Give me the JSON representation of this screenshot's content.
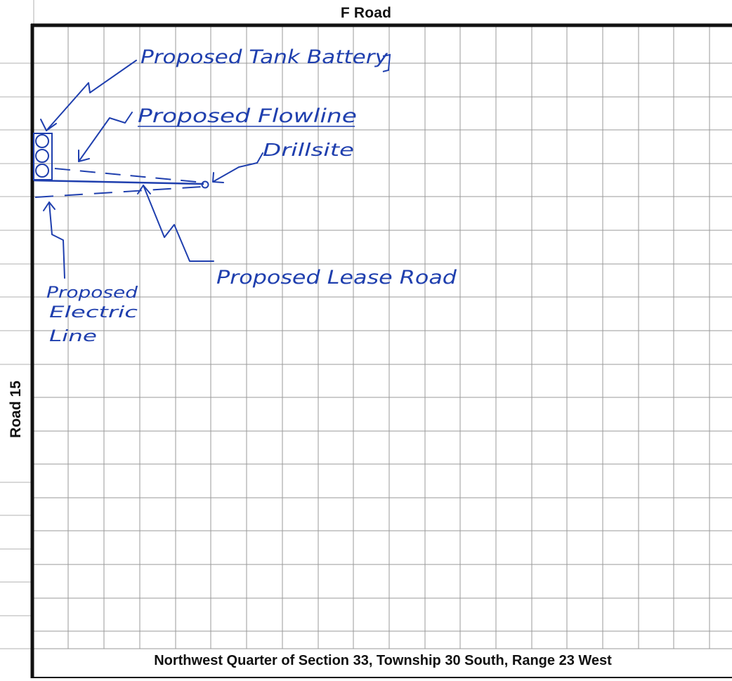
{
  "roads": {
    "top": "F Road",
    "left": "Road 15"
  },
  "labels": {
    "tank_battery": "Proposed Tank Battery",
    "flowline": "Proposed Flowline",
    "drillsite": "Drillsite",
    "lease_road": "Proposed Lease Road",
    "electric_line_1": "Proposed",
    "electric_line_2": "Electric",
    "electric_line_3": "Line"
  },
  "caption": "Northwest Quarter of Section 33, Township 30 South, Range 23 West",
  "colors": {
    "ink": "#1f3fae",
    "grid": "#9a9a9a",
    "border": "#111111"
  }
}
